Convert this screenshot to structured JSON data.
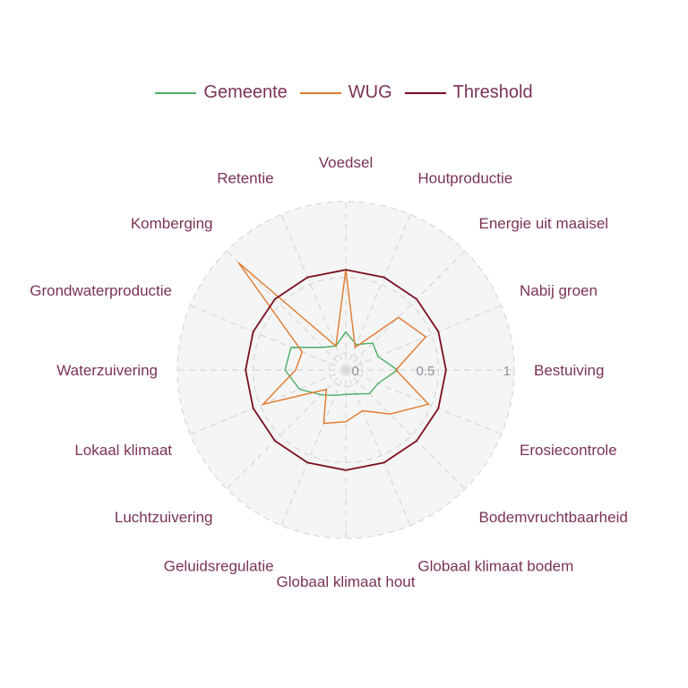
{
  "chart_data": {
    "type": "radar",
    "legend_position": "top",
    "grid": true,
    "rlim": [
      0,
      1
    ],
    "radial_ticks": [
      {
        "value": 0,
        "label": "0"
      },
      {
        "value": 0.5,
        "label": "0.5"
      },
      {
        "value": 1,
        "label": "1"
      }
    ],
    "axes": [
      "Voedsel",
      "Houtproductie",
      "Energie uit maaisel",
      "Nabij groen",
      "Bestuiving",
      "Erosiecontrole",
      "Bodemvruchtbaarheid",
      "Globaal klimaat bodem",
      "Globaal klimaat hout",
      "Geluidsregulatie",
      "Luchtzuivering",
      "Lokaal klimaat",
      "Waterzuivering",
      "Grondwaterproductie",
      "Komberging",
      "Retentie"
    ],
    "series": [
      {
        "name": "Gemeente",
        "color": "#4caf67",
        "values": [
          0.14,
          0.07,
          0.14,
          0.12,
          0.23,
          0.12,
          0.11,
          0.06,
          0.05,
          0.07,
          0.12,
          0.22,
          0.29,
          0.28,
          0.1,
          0.06
        ]
      },
      {
        "name": "WUG",
        "color": "#e0792d",
        "values": [
          0.55,
          0.05,
          0.38,
          0.46,
          0.22,
          0.48,
          0.3,
          0.18,
          0.23,
          0.27,
          0.07,
          0.48,
          0.22,
          0.2,
          0.89,
          0.06
        ]
      },
      {
        "name": "Threshold",
        "color": "#7a0f1f",
        "values": [
          0.55,
          0.55,
          0.55,
          0.55,
          0.55,
          0.55,
          0.55,
          0.55,
          0.55,
          0.55,
          0.55,
          0.55,
          0.55,
          0.55,
          0.55,
          0.55
        ]
      }
    ]
  }
}
